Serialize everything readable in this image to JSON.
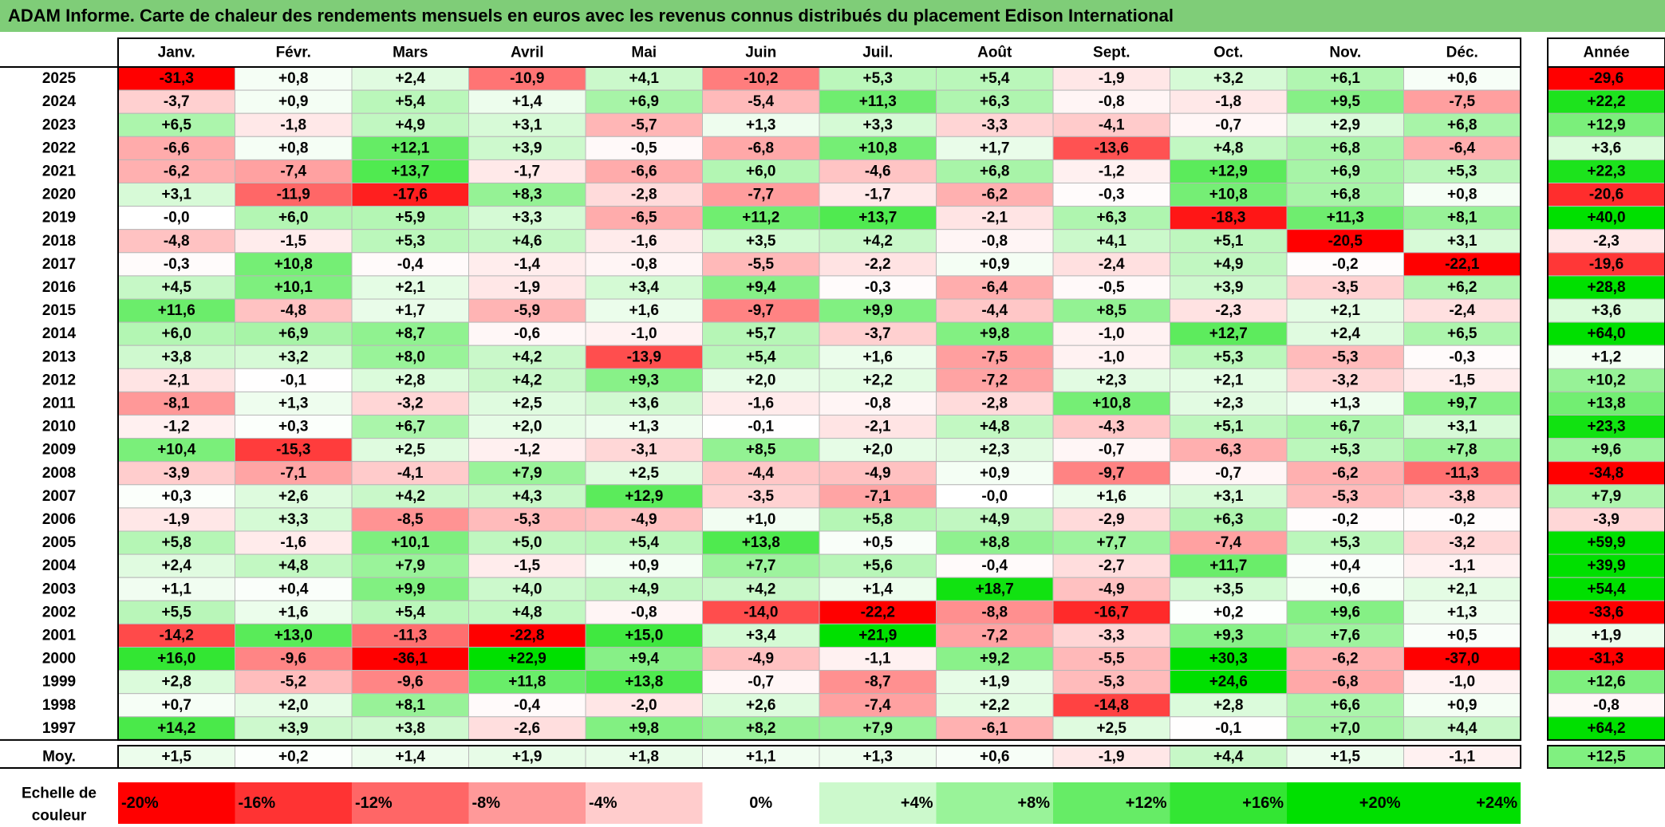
{
  "chart_data": {
    "type": "heatmap",
    "title": "ADAM Informe. Carte de chaleur des rendements mensuels en euros avec les revenus connus distribués du placement Edison International",
    "columns": [
      "Janv.",
      "Févr.",
      "Mars",
      "Avril",
      "Mai",
      "Juin",
      "Juil.",
      "Août",
      "Sept.",
      "Oct.",
      "Nov.",
      "Déc."
    ],
    "annual_header": "Année",
    "rows": [
      {
        "year": "2025",
        "values": [
          -31.3,
          0.8,
          2.4,
          -10.9,
          4.1,
          -10.2,
          5.3,
          5.4,
          -1.9,
          3.2,
          6.1,
          0.6
        ],
        "annual": -29.6
      },
      {
        "year": "2024",
        "values": [
          -3.7,
          0.9,
          5.4,
          1.4,
          6.9,
          -5.4,
          11.3,
          6.3,
          -0.8,
          -1.8,
          9.5,
          -7.5
        ],
        "annual": 22.2
      },
      {
        "year": "2023",
        "values": [
          6.5,
          -1.8,
          4.9,
          3.1,
          -5.7,
          1.3,
          3.3,
          -3.3,
          -4.1,
          -0.7,
          2.9,
          6.8
        ],
        "annual": 12.9
      },
      {
        "year": "2022",
        "values": [
          -6.6,
          0.8,
          12.1,
          3.9,
          -0.5,
          -6.8,
          10.8,
          1.7,
          -13.6,
          4.8,
          6.8,
          -6.4
        ],
        "annual": 3.6
      },
      {
        "year": "2021",
        "values": [
          -6.2,
          -7.4,
          13.7,
          -1.7,
          -6.6,
          6.0,
          -4.6,
          6.8,
          -1.2,
          12.9,
          6.9,
          5.3
        ],
        "annual": 22.3
      },
      {
        "year": "2020",
        "values": [
          3.1,
          -11.9,
          -17.6,
          8.3,
          -2.8,
          -7.7,
          -1.7,
          -6.2,
          -0.3,
          10.8,
          6.8,
          0.8
        ],
        "annual": -20.6
      },
      {
        "year": "2019",
        "values": [
          -0.0,
          6.0,
          5.9,
          3.3,
          -6.5,
          11.2,
          13.7,
          -2.1,
          6.3,
          -18.3,
          11.3,
          8.1
        ],
        "annual": 40.0
      },
      {
        "year": "2018",
        "values": [
          -4.8,
          -1.5,
          5.3,
          4.6,
          -1.6,
          3.5,
          4.2,
          -0.8,
          4.1,
          5.1,
          -20.5,
          3.1
        ],
        "annual": -2.3
      },
      {
        "year": "2017",
        "values": [
          -0.3,
          10.8,
          -0.4,
          -1.4,
          -0.8,
          -5.5,
          -2.2,
          0.9,
          -2.4,
          4.9,
          -0.2,
          -22.1
        ],
        "annual": -19.6
      },
      {
        "year": "2016",
        "values": [
          4.5,
          10.1,
          2.1,
          -1.9,
          3.4,
          9.4,
          -0.3,
          -6.4,
          -0.5,
          3.9,
          -3.5,
          6.2
        ],
        "annual": 28.8
      },
      {
        "year": "2015",
        "values": [
          11.6,
          -4.8,
          1.7,
          -5.9,
          1.6,
          -9.7,
          9.9,
          -4.4,
          8.5,
          -2.3,
          2.1,
          -2.4
        ],
        "annual": 3.6
      },
      {
        "year": "2014",
        "values": [
          6.0,
          6.9,
          8.7,
          -0.6,
          -1.0,
          5.7,
          -3.7,
          9.8,
          -1.0,
          12.7,
          2.4,
          6.5
        ],
        "annual": 64.0
      },
      {
        "year": "2013",
        "values": [
          3.8,
          3.2,
          8.0,
          4.2,
          -13.9,
          5.4,
          1.6,
          -7.5,
          -1.0,
          5.3,
          -5.3,
          -0.3
        ],
        "annual": 1.2
      },
      {
        "year": "2012",
        "values": [
          -2.1,
          -0.1,
          2.8,
          4.2,
          9.3,
          2.0,
          2.2,
          -7.2,
          2.3,
          2.1,
          -3.2,
          -1.5
        ],
        "annual": 10.2
      },
      {
        "year": "2011",
        "values": [
          -8.1,
          1.3,
          -3.2,
          2.5,
          3.6,
          -1.6,
          -0.8,
          -2.8,
          10.8,
          2.3,
          1.3,
          9.7
        ],
        "annual": 13.8
      },
      {
        "year": "2010",
        "values": [
          -1.2,
          0.3,
          6.7,
          2.0,
          1.3,
          -0.1,
          -2.1,
          4.8,
          -4.3,
          5.1,
          6.7,
          3.1
        ],
        "annual": 23.3
      },
      {
        "year": "2009",
        "values": [
          10.4,
          -15.3,
          2.5,
          -1.2,
          -3.1,
          8.5,
          2.0,
          2.3,
          -0.7,
          -6.3,
          5.3,
          7.8
        ],
        "annual": 9.6
      },
      {
        "year": "2008",
        "values": [
          -3.9,
          -7.1,
          -4.1,
          7.9,
          2.5,
          -4.4,
          -4.9,
          0.9,
          -9.7,
          -0.7,
          -6.2,
          -11.3
        ],
        "annual": -34.8
      },
      {
        "year": "2007",
        "values": [
          0.3,
          2.6,
          4.2,
          4.3,
          12.9,
          -3.5,
          -7.1,
          -0.0,
          1.6,
          3.1,
          -5.3,
          -3.8
        ],
        "annual": 7.9
      },
      {
        "year": "2006",
        "values": [
          -1.9,
          3.3,
          -8.5,
          -5.3,
          -4.9,
          1.0,
          5.8,
          4.9,
          -2.9,
          6.3,
          -0.2,
          -0.2
        ],
        "annual": -3.9
      },
      {
        "year": "2005",
        "values": [
          5.8,
          -1.6,
          10.1,
          5.0,
          5.4,
          13.8,
          0.5,
          8.8,
          7.7,
          -7.4,
          5.3,
          -3.2
        ],
        "annual": 59.9
      },
      {
        "year": "2004",
        "values": [
          2.4,
          4.8,
          7.9,
          -1.5,
          0.9,
          7.7,
          5.6,
          -0.4,
          -2.7,
          11.7,
          0.4,
          -1.1
        ],
        "annual": 39.9
      },
      {
        "year": "2003",
        "values": [
          1.1,
          0.4,
          9.9,
          4.0,
          4.9,
          4.2,
          1.4,
          18.7,
          -4.9,
          3.5,
          0.6,
          2.1
        ],
        "annual": 54.4
      },
      {
        "year": "2002",
        "values": [
          5.5,
          1.6,
          5.4,
          4.8,
          -0.8,
          -14.0,
          -22.2,
          -8.8,
          -16.7,
          0.2,
          9.6,
          1.3
        ],
        "annual": -33.6
      },
      {
        "year": "2001",
        "values": [
          -14.2,
          13.0,
          -11.3,
          -22.8,
          15.0,
          3.4,
          21.9,
          -7.2,
          -3.3,
          9.3,
          7.6,
          0.5
        ],
        "annual": 1.9
      },
      {
        "year": "2000",
        "values": [
          16.0,
          -9.6,
          -36.1,
          22.9,
          9.4,
          -4.9,
          -1.1,
          9.2,
          -5.5,
          30.3,
          -6.2,
          -37.0
        ],
        "annual": -31.3
      },
      {
        "year": "1999",
        "values": [
          2.8,
          -5.2,
          -9.6,
          11.8,
          13.8,
          -0.7,
          -8.7,
          1.9,
          -5.3,
          24.6,
          -6.8,
          -1.0
        ],
        "annual": 12.6
      },
      {
        "year": "1998",
        "values": [
          0.7,
          2.0,
          8.1,
          -0.4,
          -2.0,
          2.6,
          -7.4,
          2.2,
          -14.8,
          2.8,
          6.6,
          0.9
        ],
        "annual": -0.8
      },
      {
        "year": "1997",
        "values": [
          14.2,
          3.9,
          3.8,
          -2.6,
          9.8,
          8.2,
          7.9,
          -6.1,
          2.5,
          -0.1,
          7.0,
          4.4
        ],
        "annual": 64.2
      }
    ],
    "average": {
      "label": "Moy.",
      "values": [
        1.5,
        0.2,
        1.4,
        1.9,
        1.8,
        1.1,
        1.3,
        0.6,
        -1.9,
        4.4,
        1.5,
        -1.1
      ],
      "annual": 12.5
    },
    "scale": {
      "label": "Echelle de couleur",
      "steps": [
        -20,
        -16,
        -12,
        -8,
        -4,
        0,
        4,
        8,
        12,
        16,
        20,
        24
      ]
    },
    "colors": {
      "header": "#7fcd78",
      "negative_max": "#ff0000",
      "positive_max": "#00e000",
      "neutral": "#ffffff"
    }
  }
}
